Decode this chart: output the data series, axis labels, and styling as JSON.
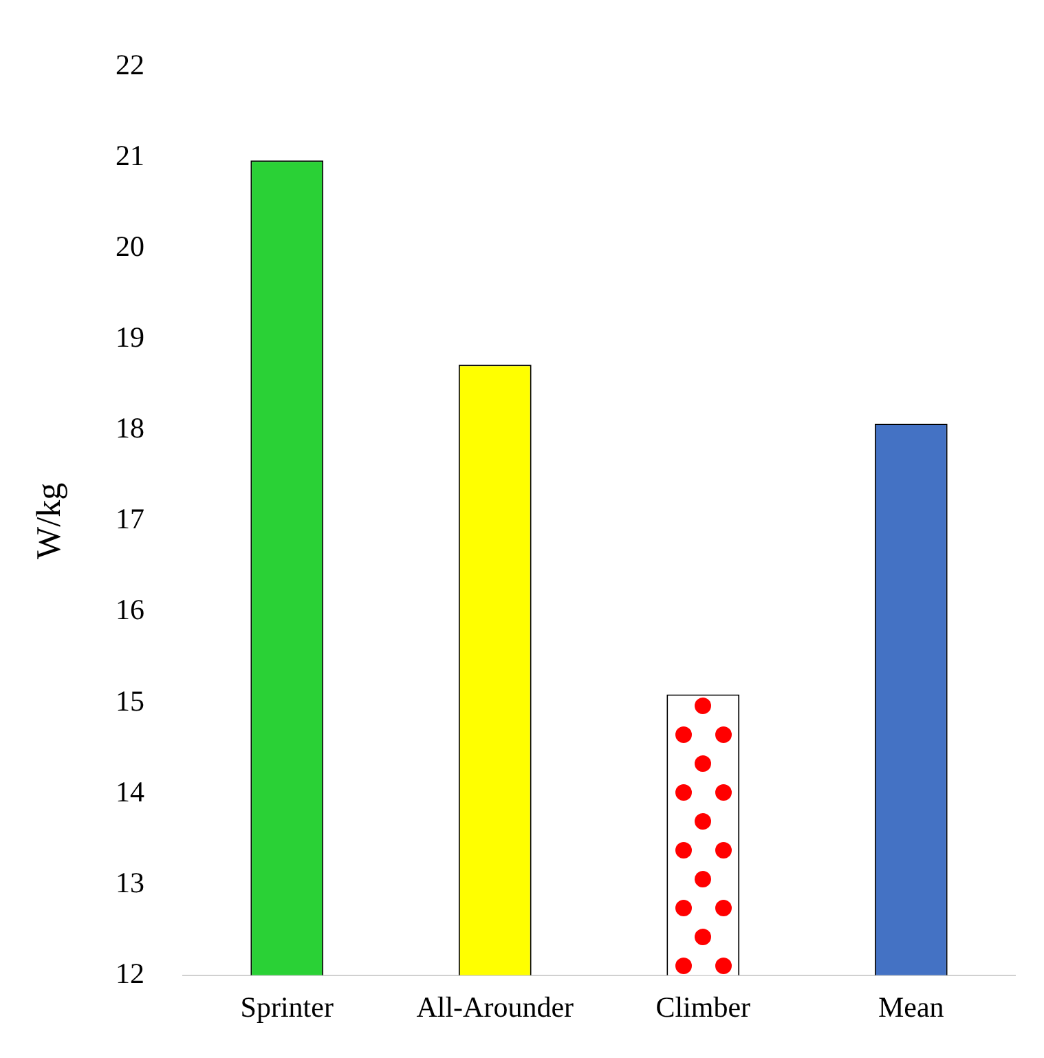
{
  "chart_data": {
    "type": "bar",
    "ylabel": "W/kg",
    "categories": [
      "Sprinter",
      "All-Arounder",
      "Climber",
      "Mean"
    ],
    "values": [
      20.97,
      18.72,
      15.09,
      18.07
    ],
    "colors": [
      "#2ad136",
      "#ffff00",
      "#ffffff",
      "#4472c4"
    ],
    "ylim": [
      12,
      22
    ],
    "yticks": [
      12,
      13,
      14,
      15,
      16,
      17,
      18,
      19,
      20,
      21,
      22
    ],
    "grid": false,
    "legend": false
  }
}
